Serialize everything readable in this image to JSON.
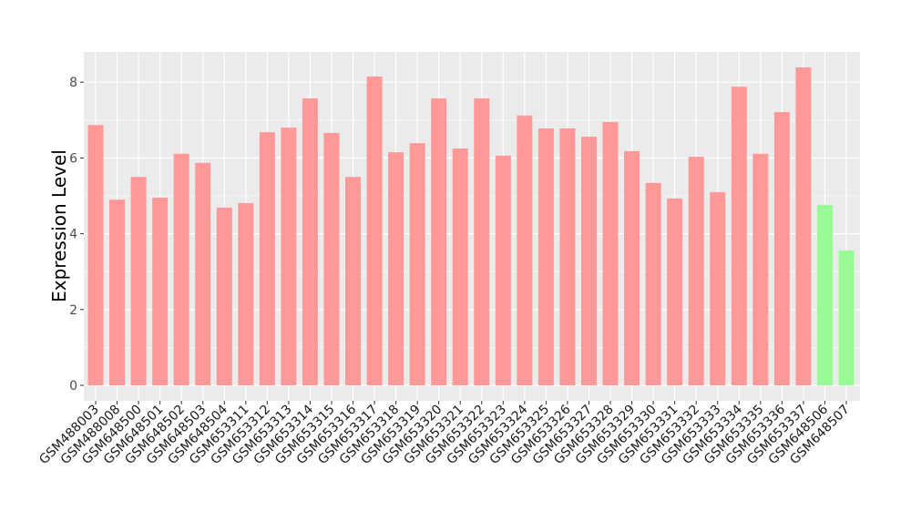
{
  "chart_data": {
    "type": "bar",
    "title": "",
    "xlabel": "",
    "ylabel": "Expression Level",
    "ylim": [
      0,
      8.8
    ],
    "yticks": [
      0,
      2,
      4,
      6,
      8
    ],
    "grid": true,
    "legend": "none",
    "colors": {
      "pink": "#FF9896",
      "green": "#98FB98",
      "panel": "#EBEBEB",
      "grid": "#FFFFFF"
    },
    "categories": [
      "GSM488003",
      "GSM488008",
      "GSM648500",
      "GSM648501",
      "GSM648502",
      "GSM648503",
      "GSM648504",
      "GSM653311",
      "GSM653312",
      "GSM653313",
      "GSM653314",
      "GSM653315",
      "GSM653316",
      "GSM653317",
      "GSM653318",
      "GSM653319",
      "GSM653320",
      "GSM653321",
      "GSM653322",
      "GSM653323",
      "GSM653324",
      "GSM653325",
      "GSM653326",
      "GSM653327",
      "GSM653328",
      "GSM653329",
      "GSM653330",
      "GSM653331",
      "GSM653332",
      "GSM653333",
      "GSM653334",
      "GSM653335",
      "GSM653336",
      "GSM653337",
      "GSM648506",
      "GSM648507"
    ],
    "values": [
      6.87,
      4.9,
      5.5,
      4.95,
      6.11,
      5.87,
      4.69,
      4.81,
      6.68,
      6.8,
      7.57,
      6.66,
      5.5,
      8.15,
      6.15,
      6.39,
      7.57,
      6.25,
      7.57,
      6.06,
      7.12,
      6.78,
      6.78,
      6.56,
      6.95,
      6.18,
      5.34,
      4.93,
      6.03,
      5.1,
      7.88,
      6.11,
      7.21,
      8.39,
      4.76,
      3.56
    ],
    "bar_colors": [
      "pink",
      "pink",
      "pink",
      "pink",
      "pink",
      "pink",
      "pink",
      "pink",
      "pink",
      "pink",
      "pink",
      "pink",
      "pink",
      "pink",
      "pink",
      "pink",
      "pink",
      "pink",
      "pink",
      "pink",
      "pink",
      "pink",
      "pink",
      "pink",
      "pink",
      "pink",
      "pink",
      "pink",
      "pink",
      "pink",
      "pink",
      "pink",
      "pink",
      "pink",
      "green",
      "green"
    ]
  }
}
